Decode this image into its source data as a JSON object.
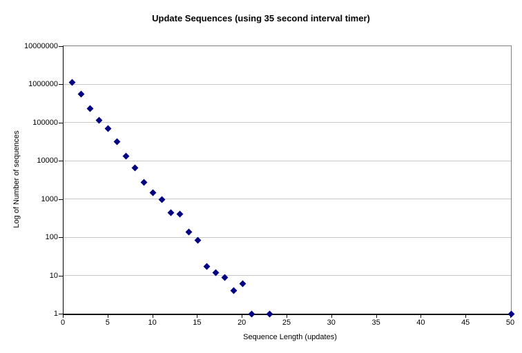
{
  "chart_data": {
    "type": "scatter",
    "title": "Update Sequences (using 35 second interval timer)",
    "xlabel": "Sequence Length (updates)",
    "ylabel": "Log of Number of sequences",
    "x_ticks": [
      0,
      5,
      10,
      15,
      20,
      25,
      30,
      35,
      40,
      45,
      50
    ],
    "y_ticks": [
      1,
      10,
      100,
      1000,
      10000,
      100000,
      1000000,
      10000000
    ],
    "xlim": [
      0,
      50
    ],
    "ylim": [
      1,
      10000000
    ],
    "y_scale": "log10",
    "grid": "horizontal-major",
    "legend_position": "none",
    "marker_shape": "diamond",
    "points": [
      {
        "x": 1,
        "y": 1150000
      },
      {
        "x": 2,
        "y": 550000
      },
      {
        "x": 3,
        "y": 230000
      },
      {
        "x": 4,
        "y": 115000
      },
      {
        "x": 5,
        "y": 70000
      },
      {
        "x": 6,
        "y": 32000
      },
      {
        "x": 7,
        "y": 13000
      },
      {
        "x": 8,
        "y": 6500
      },
      {
        "x": 9,
        "y": 2700
      },
      {
        "x": 10,
        "y": 1450
      },
      {
        "x": 11,
        "y": 950
      },
      {
        "x": 12,
        "y": 440
      },
      {
        "x": 13,
        "y": 400
      },
      {
        "x": 14,
        "y": 135
      },
      {
        "x": 15,
        "y": 85
      },
      {
        "x": 16,
        "y": 17
      },
      {
        "x": 17,
        "y": 12
      },
      {
        "x": 18,
        "y": 9
      },
      {
        "x": 19,
        "y": 4
      },
      {
        "x": 20,
        "y": 6
      },
      {
        "x": 21,
        "y": 1
      },
      {
        "x": 23,
        "y": 1
      },
      {
        "x": 50,
        "y": 1
      }
    ]
  },
  "colors": {
    "marker": "#000080",
    "gridline": "#c6c6c6",
    "plot_border": "#808080",
    "axis": "#000000",
    "background": "#ffffff",
    "text": "#000000"
  }
}
